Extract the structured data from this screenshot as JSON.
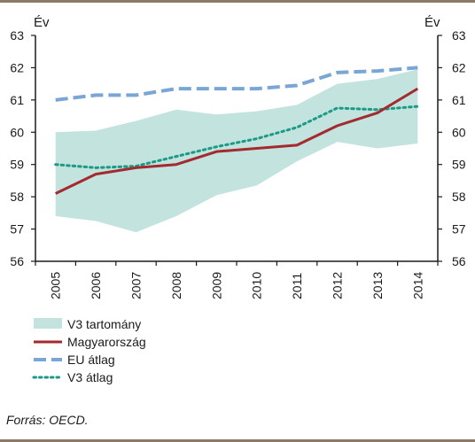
{
  "source_note": "Forrás: OECD.",
  "chart_data": {
    "type": "line",
    "x": [
      "2005",
      "2006",
      "2007",
      "2008",
      "2009",
      "2010",
      "2011",
      "2012",
      "2013",
      "2014"
    ],
    "y_left_label": "Év",
    "y_right_label": "Év",
    "ylim": [
      56,
      63
    ],
    "yticks": [
      56,
      57,
      58,
      59,
      60,
      61,
      62,
      63
    ],
    "grid": false,
    "legend_position": "bottom-left",
    "band": {
      "name": "V3 tartomány",
      "color": "#c3e3de",
      "lower": [
        57.4,
        57.25,
        56.9,
        57.4,
        58.05,
        58.35,
        59.1,
        59.7,
        59.5,
        59.65
      ],
      "upper": [
        60.0,
        60.05,
        60.35,
        60.7,
        60.55,
        60.65,
        60.85,
        61.5,
        61.65,
        61.95
      ]
    },
    "series": [
      {
        "name": "Magyarország",
        "color": "#a32a2e",
        "style": "solid",
        "values": [
          58.1,
          58.7,
          58.9,
          59.0,
          59.4,
          59.5,
          59.6,
          60.2,
          60.6,
          61.35
        ]
      },
      {
        "name": "EU átlag",
        "color": "#7aa6d6",
        "style": "dashed",
        "values": [
          61.0,
          61.15,
          61.15,
          61.35,
          61.35,
          61.35,
          61.45,
          61.85,
          61.9,
          62.0
        ]
      },
      {
        "name": "V3 átlag",
        "color": "#1b9a86",
        "style": "dotted",
        "values": [
          59.0,
          58.9,
          58.95,
          59.25,
          59.55,
          59.8,
          60.15,
          60.75,
          60.7,
          60.8
        ]
      }
    ]
  }
}
